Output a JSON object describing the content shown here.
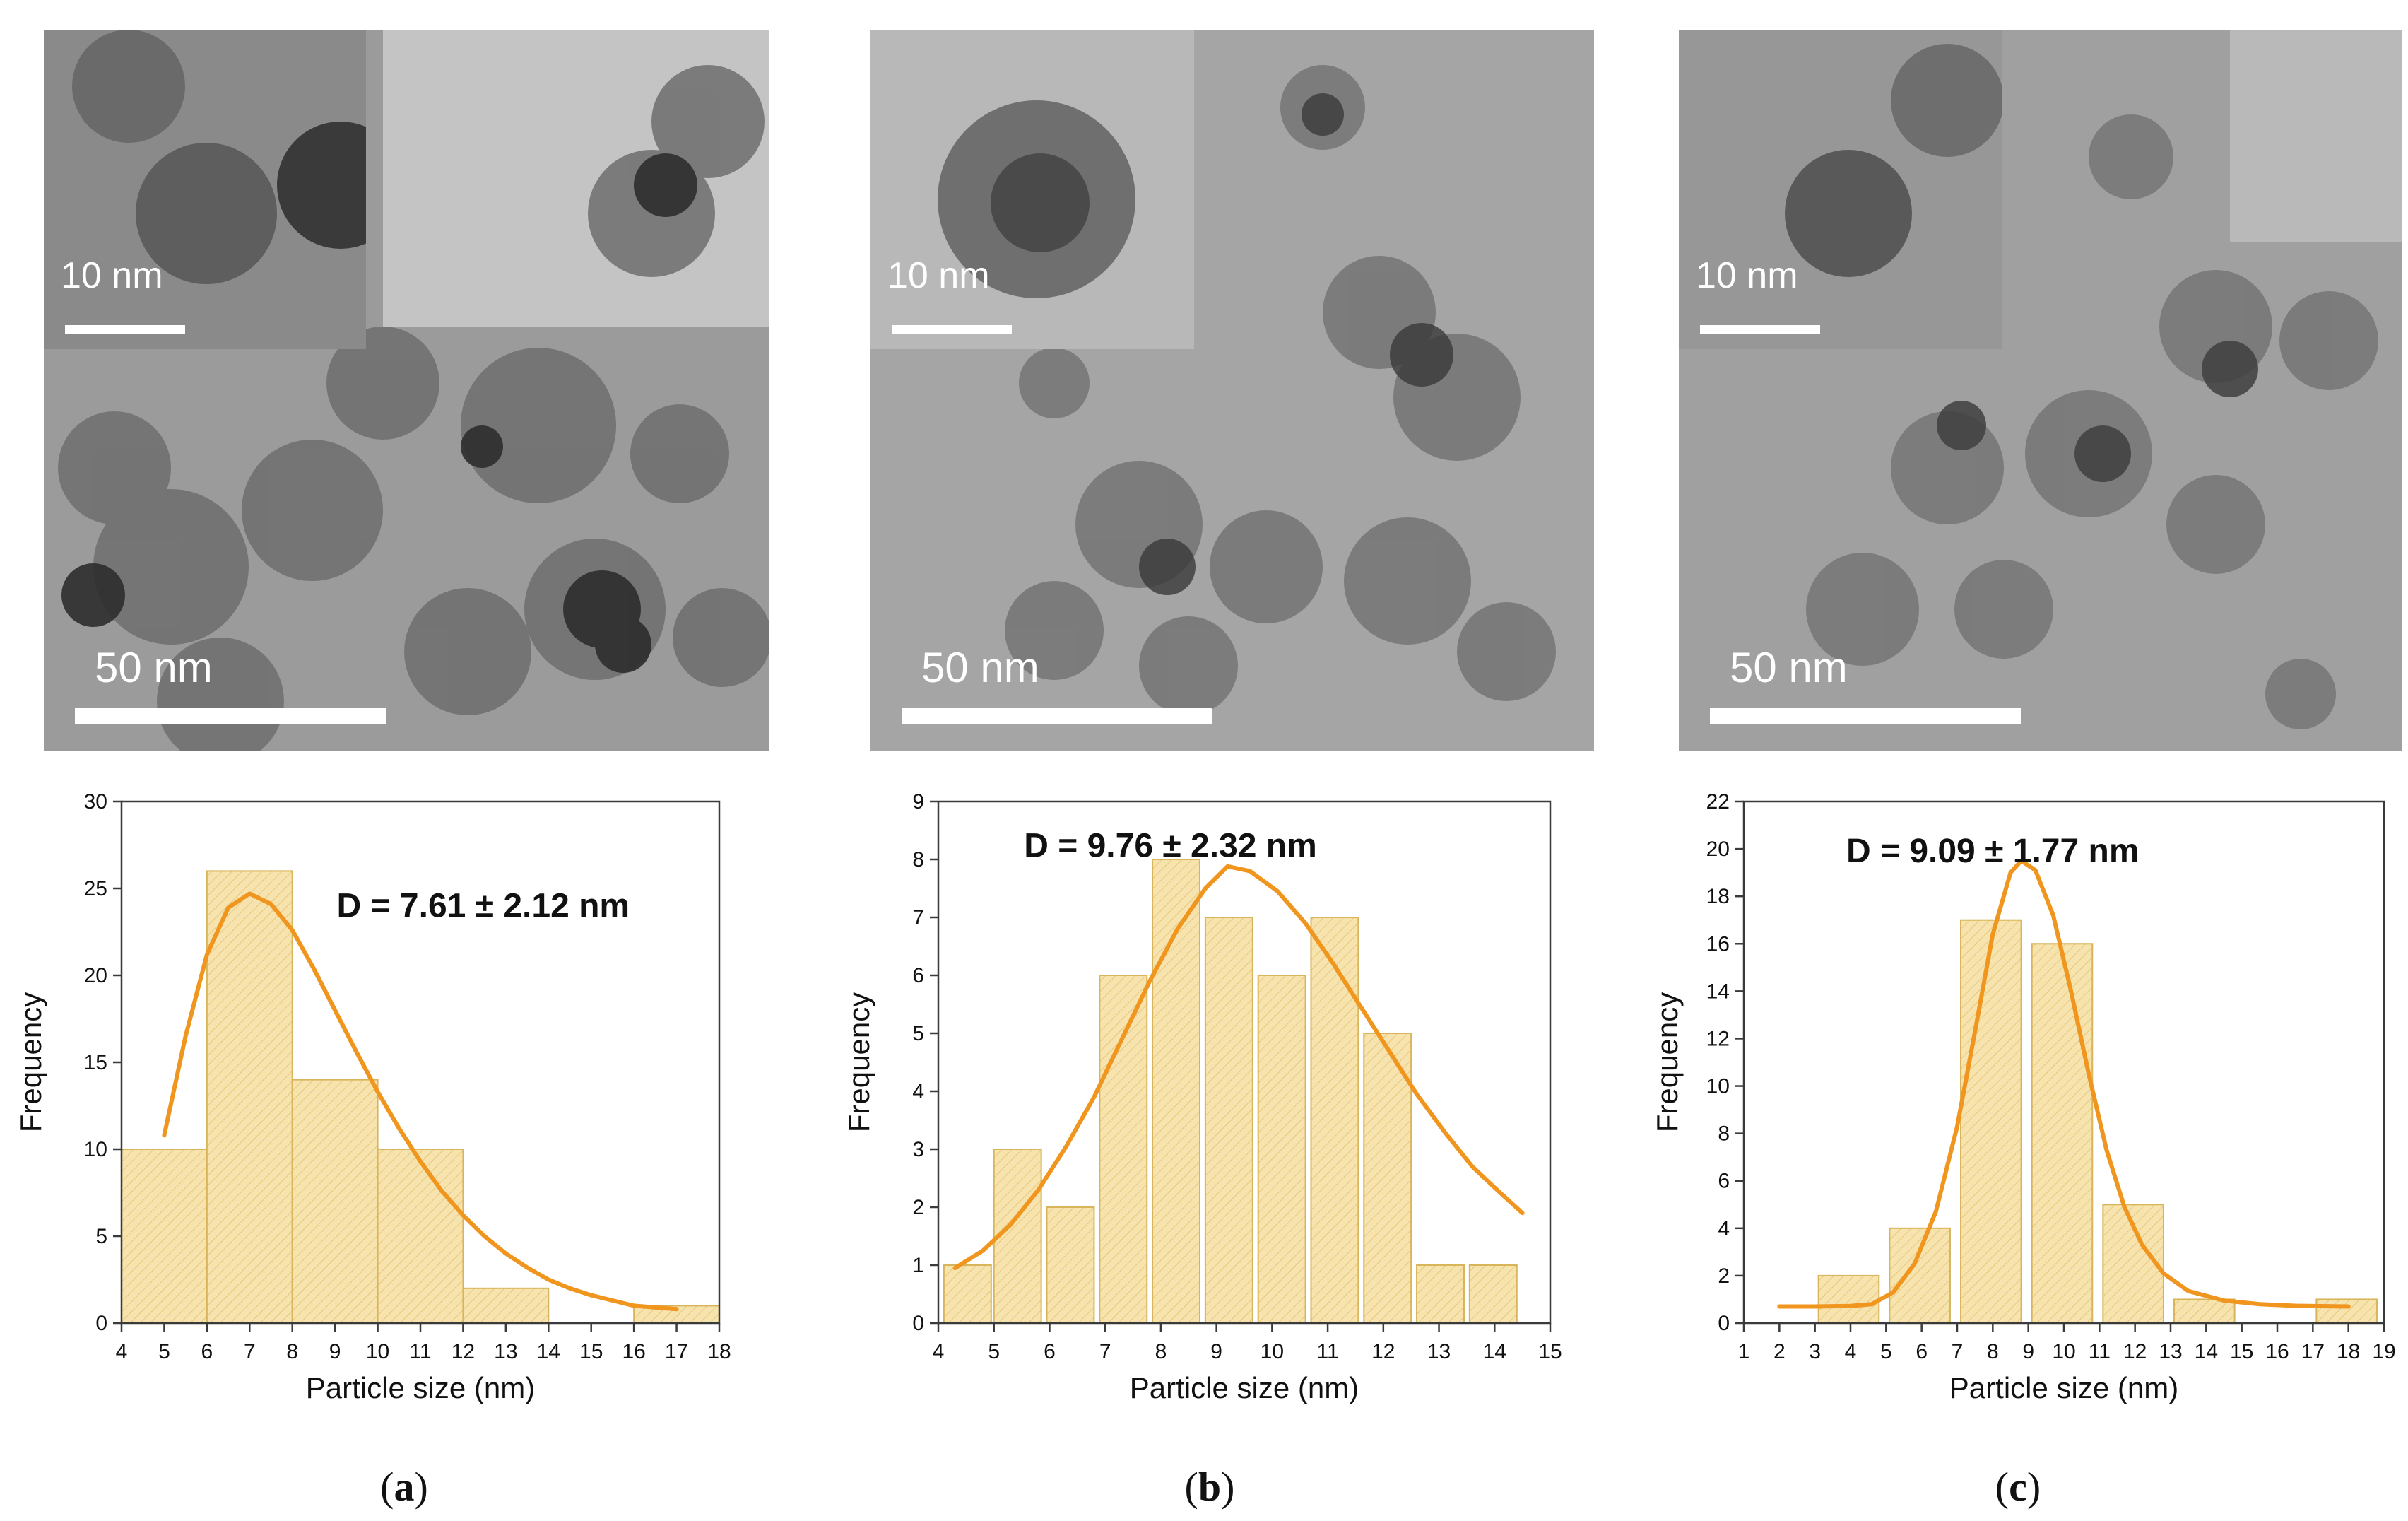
{
  "panels": [
    {
      "id": "a",
      "caption_letter": "a",
      "tem": {
        "inset_scale": "10 nm",
        "main_scale": "50 nm"
      },
      "chart_data": {
        "type": "bar",
        "xlabel": "Particle size (nm)",
        "ylabel": "Frequency",
        "annotation": "D = 7.61 ± 2.12 nm",
        "xlim": [
          4,
          18
        ],
        "ylim": [
          0,
          30
        ],
        "xticks": [
          4,
          5,
          6,
          7,
          8,
          9,
          10,
          11,
          12,
          13,
          14,
          15,
          16,
          17,
          18
        ],
        "yticks": [
          0,
          5,
          10,
          15,
          20,
          25,
          30
        ],
        "bins": [
          {
            "x0": 4,
            "x1": 6,
            "value": 10
          },
          {
            "x0": 6,
            "x1": 8,
            "value": 26
          },
          {
            "x0": 8,
            "x1": 10,
            "value": 14
          },
          {
            "x0": 10,
            "x1": 12,
            "value": 10
          },
          {
            "x0": 12,
            "x1": 14,
            "value": 2
          },
          {
            "x0": 16,
            "x1": 18,
            "value": 1
          }
        ],
        "fit": {
          "type": "lognormal",
          "x_range": [
            5,
            17
          ],
          "peak_x": 7.1,
          "peak_y": 24.7,
          "points": [
            [
              5,
              10.8
            ],
            [
              5.5,
              16.5
            ],
            [
              6,
              21.2
            ],
            [
              6.5,
              23.9
            ],
            [
              7,
              24.7
            ],
            [
              7.5,
              24.1
            ],
            [
              8,
              22.6
            ],
            [
              8.5,
              20.4
            ],
            [
              9,
              18.0
            ],
            [
              9.5,
              15.6
            ],
            [
              10,
              13.3
            ],
            [
              10.5,
              11.2
            ],
            [
              11,
              9.3
            ],
            [
              11.5,
              7.6
            ],
            [
              12,
              6.2
            ],
            [
              12.5,
              5.0
            ],
            [
              13,
              4.0
            ],
            [
              13.5,
              3.2
            ],
            [
              14,
              2.5
            ],
            [
              14.5,
              2.0
            ],
            [
              15,
              1.6
            ],
            [
              15.5,
              1.3
            ],
            [
              16,
              1.0
            ],
            [
              16.5,
              0.9
            ],
            [
              17,
              0.8
            ]
          ]
        }
      }
    },
    {
      "id": "b",
      "caption_letter": "b",
      "tem": {
        "inset_scale": "10 nm",
        "main_scale": "50 nm"
      },
      "chart_data": {
        "type": "bar",
        "xlabel": "Particle size (nm)",
        "ylabel": "Frequency",
        "annotation": "D = 9.76 ±  2.32 nm",
        "xlim": [
          4,
          15
        ],
        "ylim": [
          0,
          9
        ],
        "xticks": [
          4,
          5,
          6,
          7,
          8,
          9,
          10,
          11,
          12,
          13,
          14,
          15
        ],
        "yticks": [
          0,
          1,
          2,
          3,
          4,
          5,
          6,
          7,
          8,
          9
        ],
        "bins": [
          {
            "x0": 4.1,
            "x1": 4.95,
            "value": 1
          },
          {
            "x0": 5.0,
            "x1": 5.85,
            "value": 3
          },
          {
            "x0": 5.95,
            "x1": 6.8,
            "value": 2
          },
          {
            "x0": 6.9,
            "x1": 7.75,
            "value": 6
          },
          {
            "x0": 7.85,
            "x1": 8.7,
            "value": 8
          },
          {
            "x0": 8.8,
            "x1": 9.65,
            "value": 7
          },
          {
            "x0": 9.75,
            "x1": 10.6,
            "value": 6
          },
          {
            "x0": 10.7,
            "x1": 11.55,
            "value": 7
          },
          {
            "x0": 11.65,
            "x1": 12.5,
            "value": 5
          },
          {
            "x0": 12.6,
            "x1": 13.45,
            "value": 1
          },
          {
            "x0": 13.55,
            "x1": 14.4,
            "value": 1
          }
        ],
        "fit": {
          "type": "gaussian",
          "x_range": [
            4.3,
            14.5
          ],
          "peak_x": 9.2,
          "peak_y": 7.9,
          "points": [
            [
              4.3,
              0.95
            ],
            [
              4.8,
              1.25
            ],
            [
              5.3,
              1.7
            ],
            [
              5.8,
              2.3
            ],
            [
              6.3,
              3.05
            ],
            [
              6.8,
              3.9
            ],
            [
              7.3,
              4.9
            ],
            [
              7.8,
              5.9
            ],
            [
              8.3,
              6.8
            ],
            [
              8.8,
              7.5
            ],
            [
              9.2,
              7.88
            ],
            [
              9.6,
              7.8
            ],
            [
              10.1,
              7.45
            ],
            [
              10.6,
              6.9
            ],
            [
              11.1,
              6.2
            ],
            [
              11.6,
              5.45
            ],
            [
              12.1,
              4.7
            ],
            [
              12.6,
              3.95
            ],
            [
              13.1,
              3.3
            ],
            [
              13.6,
              2.7
            ],
            [
              14.1,
              2.25
            ],
            [
              14.5,
              1.9
            ]
          ]
        }
      }
    },
    {
      "id": "c",
      "caption_letter": "c",
      "tem": {
        "inset_scale": "10 nm",
        "main_scale": "50 nm"
      },
      "chart_data": {
        "type": "bar",
        "xlabel": "Particle size (nm)",
        "ylabel": "Frequency",
        "annotation": "D = 9.09 ± 1.77 nm",
        "xlim": [
          1,
          19
        ],
        "ylim": [
          0,
          22
        ],
        "xticks": [
          1,
          2,
          3,
          4,
          5,
          6,
          7,
          8,
          9,
          10,
          11,
          12,
          13,
          14,
          15,
          16,
          17,
          18,
          19
        ],
        "yticks": [
          0,
          2,
          4,
          6,
          8,
          10,
          12,
          14,
          16,
          18,
          20,
          22
        ],
        "bins": [
          {
            "x0": 3.1,
            "x1": 4.8,
            "value": 2
          },
          {
            "x0": 5.1,
            "x1": 6.8,
            "value": 4
          },
          {
            "x0": 7.1,
            "x1": 8.8,
            "value": 17
          },
          {
            "x0": 9.1,
            "x1": 10.8,
            "value": 16
          },
          {
            "x0": 11.1,
            "x1": 12.8,
            "value": 5
          },
          {
            "x0": 13.1,
            "x1": 14.8,
            "value": 1
          },
          {
            "x0": 17.1,
            "x1": 18.8,
            "value": 1
          }
        ],
        "fit": {
          "type": "lorentzian",
          "x_range": [
            2,
            18
          ],
          "peak_x": 8.8,
          "peak_y": 19.5,
          "points": [
            [
              2,
              0.7
            ],
            [
              3,
              0.7
            ],
            [
              4,
              0.72
            ],
            [
              4.6,
              0.8
            ],
            [
              5.2,
              1.3
            ],
            [
              5.8,
              2.5
            ],
            [
              6.4,
              4.7
            ],
            [
              7,
              8.3
            ],
            [
              7.5,
              12.3
            ],
            [
              8,
              16.4
            ],
            [
              8.5,
              19.0
            ],
            [
              8.8,
              19.5
            ],
            [
              9.2,
              19.1
            ],
            [
              9.7,
              17.2
            ],
            [
              10.2,
              14.0
            ],
            [
              10.7,
              10.5
            ],
            [
              11.2,
              7.3
            ],
            [
              11.7,
              4.9
            ],
            [
              12.2,
              3.3
            ],
            [
              12.8,
              2.1
            ],
            [
              13.5,
              1.35
            ],
            [
              14.5,
              0.95
            ],
            [
              15.5,
              0.8
            ],
            [
              16.5,
              0.73
            ],
            [
              18,
              0.7
            ]
          ]
        }
      }
    }
  ],
  "colors": {
    "bar_fill": "#f7e3ad",
    "bar_stroke": "#d8b45a",
    "fit_line": "#f0951e",
    "axis": "#3a3a3a",
    "text": "#111111"
  }
}
